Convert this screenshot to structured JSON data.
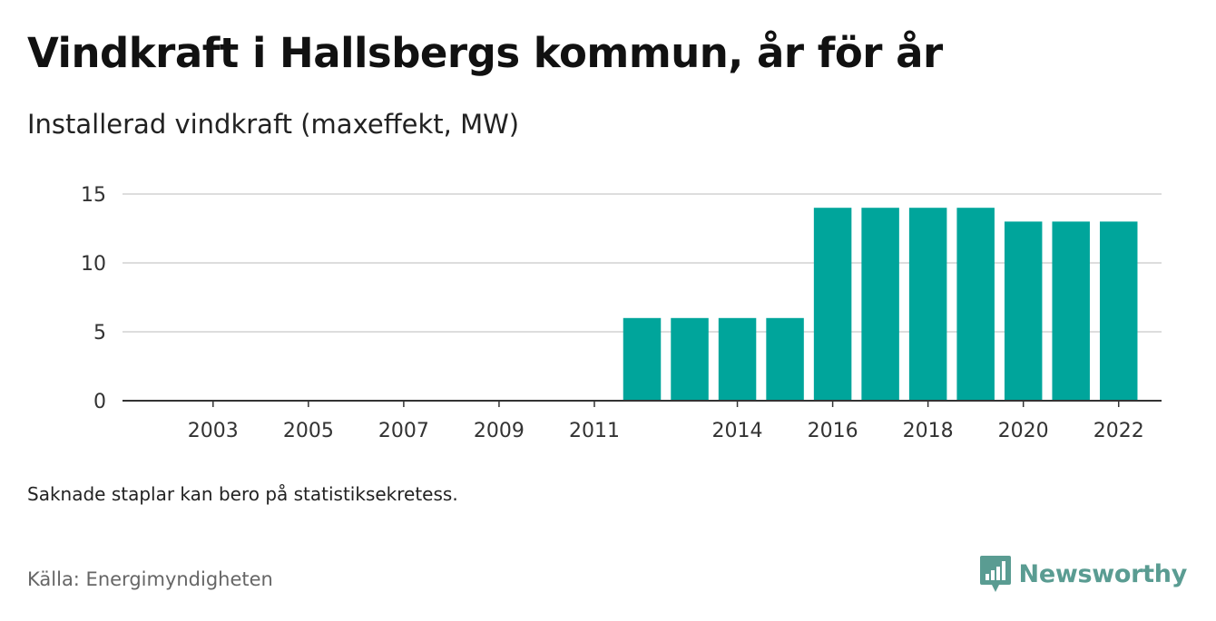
{
  "header": {
    "title": "Vindkraft i Hallsbergs kommun, år för år",
    "subtitle": "Installerad vindkraft (maxeffekt, MW)"
  },
  "footer": {
    "note": "Saknade staplar kan bero på statistiksekretess.",
    "source": "Källa: Energimyndigheten",
    "brand": "Newsworthy",
    "brand_icon": "newsworthy-logo-icon"
  },
  "colors": {
    "bar": "#00a59b",
    "grid": "#dddddd",
    "axis": "#333333",
    "brand": "#5a9c92"
  },
  "chart_data": {
    "type": "bar",
    "title": "Vindkraft i Hallsbergs kommun, år för år",
    "subtitle": "Installerad vindkraft (maxeffekt, MW)",
    "xlabel": "",
    "ylabel": "",
    "ylim": [
      0,
      15
    ],
    "yticks": [
      0,
      5,
      10,
      15
    ],
    "grid": true,
    "legend": "none",
    "categories": [
      "2002",
      "2003",
      "2004",
      "2005",
      "2006",
      "2007",
      "2008",
      "2009",
      "2010",
      "2011",
      "2012",
      "2013",
      "2014",
      "2015",
      "2016",
      "2017",
      "2018",
      "2019",
      "2020",
      "2021",
      "2022"
    ],
    "xtick_labels": [
      "2003",
      "2005",
      "2007",
      "2009",
      "2011",
      "2014",
      "2016",
      "2018",
      "2020",
      "2022"
    ],
    "values": [
      0,
      0,
      0,
      0,
      0,
      0,
      0,
      0,
      0,
      0,
      6,
      6,
      6,
      6,
      14,
      14,
      14,
      14,
      13,
      13,
      13
    ]
  }
}
